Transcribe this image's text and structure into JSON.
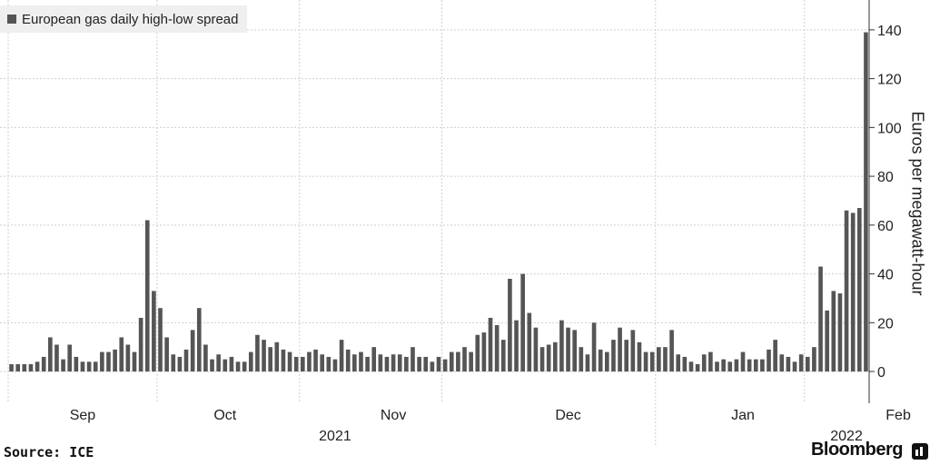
{
  "legend": {
    "label": "European gas daily high-low spread",
    "color": "#555555"
  },
  "source": "Source: ICE",
  "brand": "Bloomberg",
  "chart_data": {
    "type": "bar",
    "title": "",
    "legend": [
      "European gas daily high-low spread"
    ],
    "ylabel": "Euros per megawatt-hour",
    "ylim": [
      -13,
      150
    ],
    "yticks": [
      0,
      20,
      40,
      60,
      80,
      100,
      120,
      140
    ],
    "grid": true,
    "legend_position": "top-left",
    "bar_color": "#555555",
    "x_month_labels": [
      {
        "label": "Sep",
        "index": 11
      },
      {
        "label": "Oct",
        "index": 33
      },
      {
        "label": "Nov",
        "index": 59
      },
      {
        "label": "Dec",
        "index": 86
      },
      {
        "label": "Jan",
        "index": 113
      },
      {
        "label": "Feb",
        "index": 137
      }
    ],
    "x_year_labels": [
      {
        "label": "2021",
        "index": 50
      },
      {
        "label": "2022",
        "index": 129
      }
    ],
    "values": [
      3,
      3,
      3,
      3,
      4,
      6,
      14,
      11,
      5,
      11,
      6,
      4,
      4,
      4,
      8,
      8,
      9,
      14,
      11,
      8,
      22,
      62,
      33,
      26,
      14,
      7,
      6,
      9,
      17,
      26,
      11,
      5,
      7,
      5,
      6,
      4,
      4,
      8,
      15,
      13,
      10,
      12,
      9,
      8,
      6,
      6,
      8,
      9,
      7,
      6,
      5,
      13,
      9,
      7,
      8,
      6,
      10,
      7,
      6,
      7,
      7,
      6,
      10,
      6,
      6,
      4,
      6,
      5,
      8,
      8,
      10,
      8,
      15,
      16,
      22,
      19,
      13,
      38,
      21,
      40,
      24,
      18,
      10,
      11,
      12,
      21,
      18,
      17,
      10,
      7,
      20,
      9,
      8,
      13,
      18,
      13,
      17,
      12,
      8,
      8,
      10,
      10,
      17,
      7,
      6,
      4,
      3,
      7,
      8,
      4,
      5,
      4,
      5,
      8,
      5,
      5,
      5,
      9,
      13,
      7,
      6,
      4,
      7,
      6,
      10,
      43,
      25,
      33,
      32,
      66,
      65,
      67,
      139
    ]
  }
}
